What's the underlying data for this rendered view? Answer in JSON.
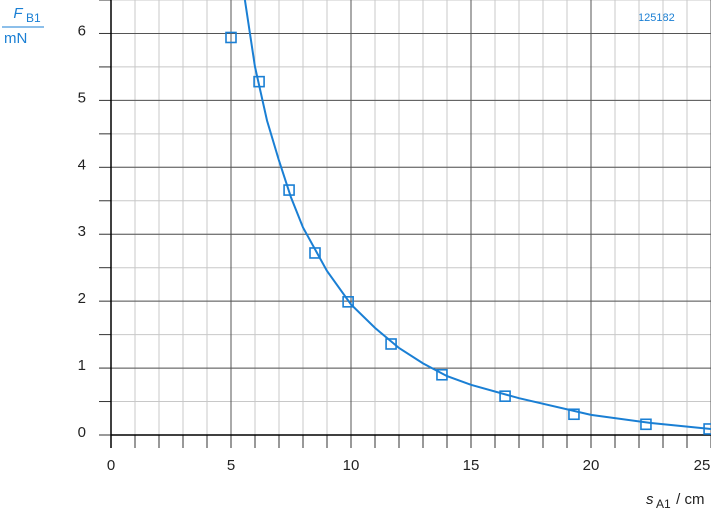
{
  "chart_data": {
    "type": "scatter",
    "annotation": "125182",
    "y_label": {
      "symbol": "F",
      "subscript": "B1",
      "unit": "mN"
    },
    "x_label": {
      "symbol": "s",
      "subscript": "A1",
      "rest": " / cm"
    },
    "xlim": [
      0,
      25
    ],
    "ylim": [
      0,
      6.5
    ],
    "xticks": [
      0,
      5,
      10,
      15,
      20,
      25
    ],
    "yticks": [
      0,
      1,
      2,
      3,
      4,
      5,
      6
    ],
    "minor_grid": {
      "x": 1,
      "y": 0.5
    },
    "grid": true,
    "points": {
      "color": "#1a7fd4",
      "x": [
        5.0,
        6.17,
        7.42,
        8.5,
        9.88,
        11.67,
        13.79,
        16.42,
        19.29,
        22.29,
        24.92
      ],
      "y": [
        5.94,
        5.28,
        3.66,
        2.72,
        1.99,
        1.36,
        0.9,
        0.58,
        0.31,
        0.16,
        0.09
      ]
    },
    "fit_curve": {
      "color": "#1a7fd4",
      "x": [
        5.58,
        6,
        6.5,
        7,
        7.5,
        8,
        9,
        10,
        11,
        12,
        13,
        14,
        15,
        17,
        20,
        22.5,
        25
      ],
      "y": [
        6.5,
        5.5,
        4.7,
        4.1,
        3.55,
        3.1,
        2.45,
        1.95,
        1.6,
        1.3,
        1.07,
        0.88,
        0.75,
        0.55,
        0.3,
        0.18,
        0.09
      ]
    }
  }
}
